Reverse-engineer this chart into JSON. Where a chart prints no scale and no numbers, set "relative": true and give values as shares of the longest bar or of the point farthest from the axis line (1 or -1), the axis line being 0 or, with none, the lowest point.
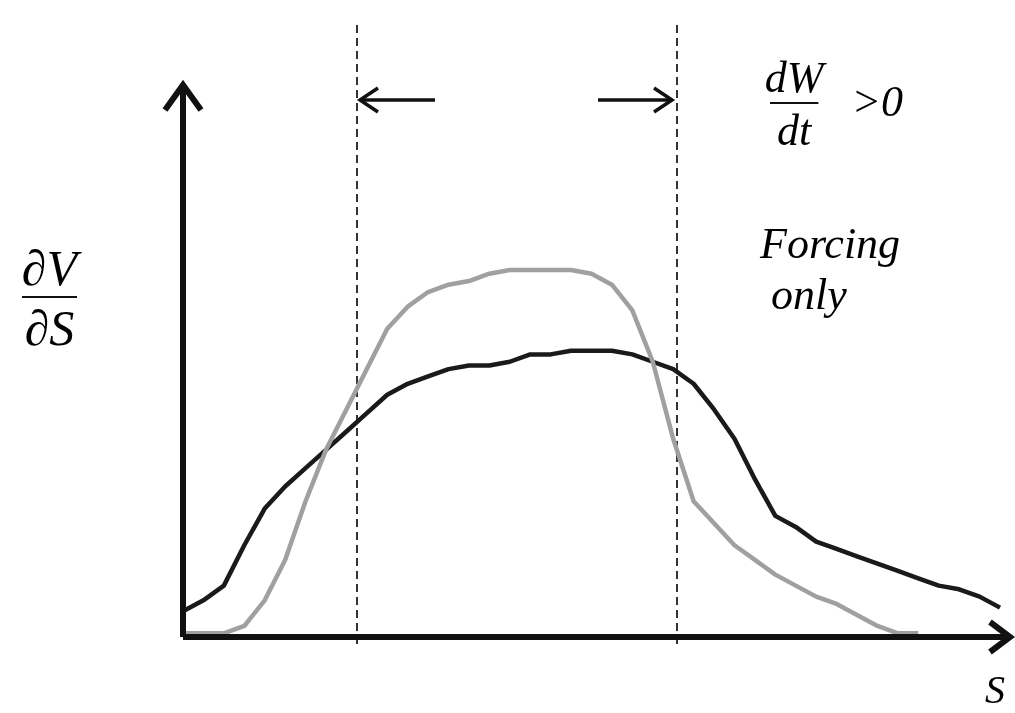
{
  "chart_data": {
    "type": "line",
    "relative": true,
    "xlabel": "S",
    "ylabel": "∂V/∂S",
    "categories": [
      null,
      null,
      null,
      null,
      null,
      null,
      null,
      null,
      null,
      null,
      null,
      null,
      null,
      null,
      null,
      null,
      null,
      null,
      null,
      null,
      null,
      null,
      null,
      null,
      null,
      null,
      null,
      null,
      null,
      null,
      null,
      null,
      null,
      null,
      null,
      null,
      null,
      null,
      null,
      null,
      null
    ],
    "series": [
      {
        "color": "#1a1a1a",
        "values": [
          0.07,
          0.1,
          0.14,
          0.25,
          0.35,
          0.41,
          0.46,
          0.51,
          0.56,
          0.61,
          0.66,
          0.69,
          0.71,
          0.73,
          0.74,
          0.74,
          0.75,
          0.77,
          0.77,
          0.78,
          0.78,
          0.78,
          0.77,
          0.75,
          0.73,
          0.69,
          0.62,
          0.54,
          0.43,
          0.33,
          0.3,
          0.26,
          0.24,
          0.22,
          0.2,
          0.18,
          0.16,
          0.14,
          0.13,
          0.11,
          0.08
        ]
      },
      {
        "color": "#a0a0a0",
        "values": [
          0.01,
          0.01,
          0.01,
          0.03,
          0.1,
          0.21,
          0.37,
          0.51,
          0.62,
          0.73,
          0.84,
          0.9,
          0.94,
          0.96,
          0.97,
          0.99,
          1.0,
          1.0,
          1.0,
          1.0,
          0.99,
          0.96,
          0.89,
          0.75,
          0.54,
          0.37,
          0.31,
          0.25,
          0.21,
          0.17,
          0.14,
          0.11,
          0.09,
          0.06,
          0.03,
          0.01,
          0.01,
          null,
          null,
          null,
          null
        ]
      }
    ],
    "annotations": [
      "dW/dt >0",
      "Forcing only"
    ]
  }
}
